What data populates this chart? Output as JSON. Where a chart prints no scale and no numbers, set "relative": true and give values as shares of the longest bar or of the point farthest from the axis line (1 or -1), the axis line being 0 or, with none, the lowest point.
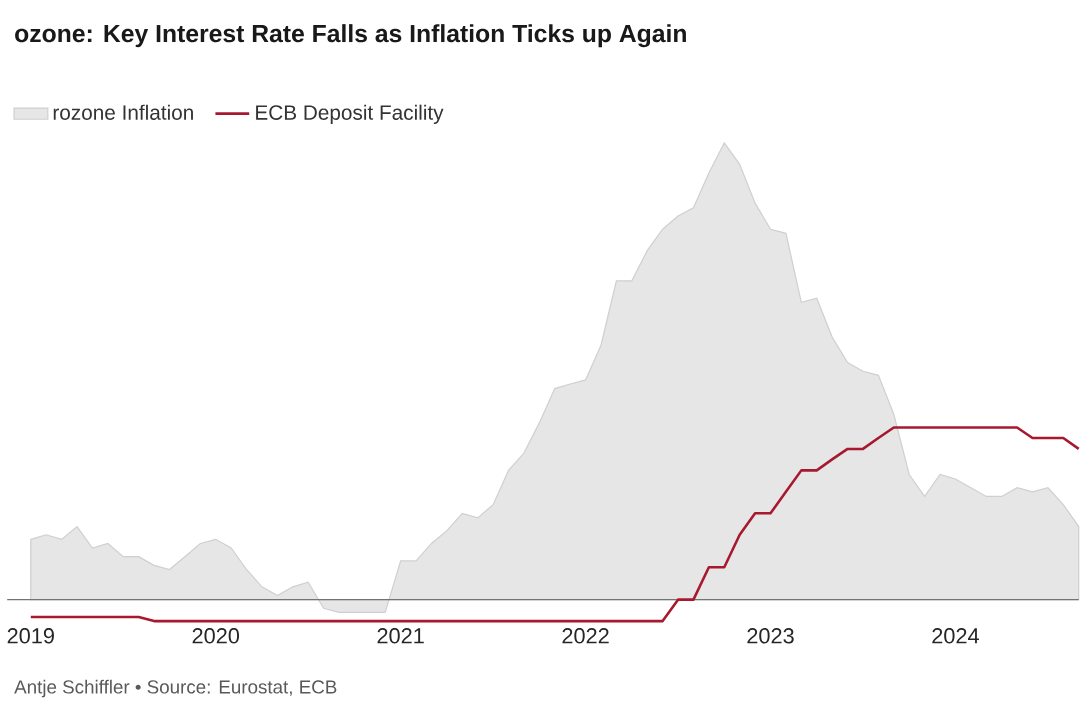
{
  "chart_data": {
    "type": "area",
    "title": "ozone: Key Interest Rate Falls as Inflation Ticks up Again",
    "relative": true,
    "legend": "top left",
    "x": [
      "2019-01",
      "2019-02",
      "2019-03",
      "2019-04",
      "2019-05",
      "2019-06",
      "2019-07",
      "2019-08",
      "2019-09",
      "2019-10",
      "2019-11",
      "2019-12",
      "2020-01",
      "2020-02",
      "2020-03",
      "2020-04",
      "2020-05",
      "2020-06",
      "2020-07",
      "2020-08",
      "2020-09",
      "2020-10",
      "2020-11",
      "2020-12",
      "2021-01",
      "2021-02",
      "2021-03",
      "2021-04",
      "2021-05",
      "2021-06",
      "2021-07",
      "2021-08",
      "2021-09",
      "2021-10",
      "2021-11",
      "2021-12",
      "2022-01",
      "2022-02",
      "2022-03",
      "2022-04",
      "2022-05",
      "2022-06",
      "2022-07",
      "2022-08",
      "2022-09",
      "2022-10",
      "2022-11",
      "2022-12",
      "2023-01",
      "2023-02",
      "2023-03",
      "2023-04",
      "2023-05",
      "2023-06",
      "2023-07",
      "2023-08",
      "2023-09",
      "2023-10",
      "2023-11",
      "2023-12",
      "2024-01",
      "2024-02",
      "2024-03",
      "2024-04",
      "2024-05",
      "2024-06",
      "2024-07",
      "2024-08",
      "2024-09"
    ],
    "xlim": [
      "2018-11-15",
      "2024-09-01"
    ],
    "xticks": [
      "2019",
      "2020",
      "2021",
      "2022",
      "2023",
      "2024"
    ],
    "series": [
      {
        "name": "rozone Inflation",
        "color": "#e6e6e6",
        "values": [
          0.132,
          0.142,
          0.132,
          0.16,
          0.113,
          0.123,
          0.094,
          0.094,
          0.075,
          0.066,
          0.094,
          0.123,
          0.132,
          0.113,
          0.066,
          0.028,
          0.009,
          0.028,
          0.038,
          -0.019,
          -0.028,
          -0.028,
          -0.028,
          -0.028,
          0.085,
          0.085,
          0.123,
          0.151,
          0.189,
          0.179,
          0.208,
          0.283,
          0.321,
          0.387,
          0.462,
          0.472,
          0.481,
          0.557,
          0.698,
          0.698,
          0.764,
          0.811,
          0.84,
          0.858,
          0.934,
          1,
          0.953,
          0.868,
          0.811,
          0.802,
          0.651,
          0.66,
          0.575,
          0.519,
          0.5,
          0.491,
          0.406,
          0.274,
          0.226,
          0.274,
          0.264,
          0.245,
          0.226,
          0.226,
          0.245,
          0.236,
          0.245,
          0.208,
          0.16
        ]
      },
      {
        "name": "ECB Deposit Facility",
        "type": "line",
        "color": "#a6192e",
        "values": [
          -0.038,
          -0.038,
          -0.038,
          -0.038,
          -0.038,
          -0.038,
          -0.038,
          -0.038,
          -0.047,
          -0.047,
          -0.047,
          -0.047,
          -0.047,
          -0.047,
          -0.047,
          -0.047,
          -0.047,
          -0.047,
          -0.047,
          -0.047,
          -0.047,
          -0.047,
          -0.047,
          -0.047,
          -0.047,
          -0.047,
          -0.047,
          -0.047,
          -0.047,
          -0.047,
          -0.047,
          -0.047,
          -0.047,
          -0.047,
          -0.047,
          -0.047,
          -0.047,
          -0.047,
          -0.047,
          -0.047,
          -0.047,
          -0.047,
          0,
          0,
          0.071,
          0.071,
          0.142,
          0.189,
          0.189,
          0.236,
          0.283,
          0.283,
          0.307,
          0.33,
          0.33,
          0.354,
          0.377,
          0.377,
          0.377,
          0.377,
          0.377,
          0.377,
          0.377,
          0.377,
          0.377,
          0.354,
          0.354,
          0.354,
          0.33
        ]
      }
    ],
    "annotations": [
      "Antje Schiffler • Source: Eurostat, ECB"
    ]
  }
}
